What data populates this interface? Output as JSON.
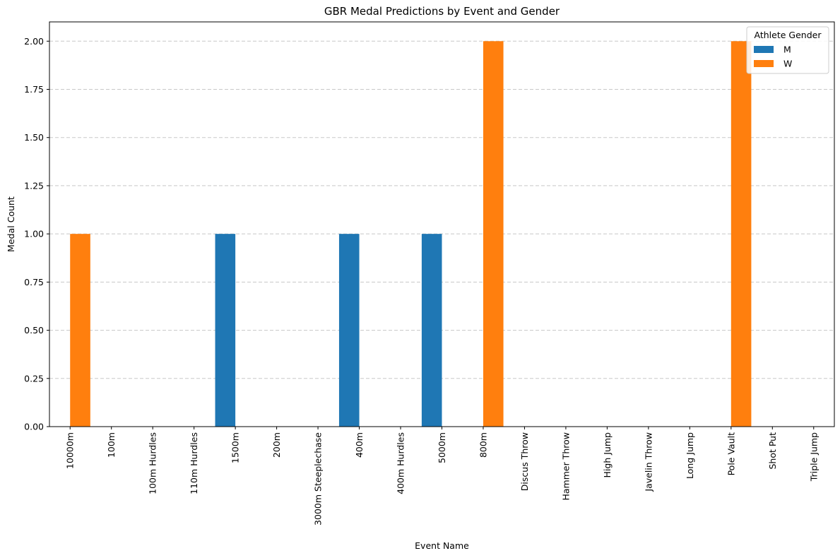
{
  "chart_data": {
    "type": "bar",
    "title": "GBR Medal Predictions by Event and Gender",
    "xlabel": "Event Name",
    "ylabel": "Medal Count",
    "ylim": [
      0,
      2.1
    ],
    "yticks": [
      "0.00",
      "0.25",
      "0.50",
      "0.75",
      "1.00",
      "1.25",
      "1.50",
      "1.75",
      "2.00"
    ],
    "grid": "y-dashed",
    "legend": {
      "title": "Athlete Gender",
      "placement": "top-right"
    },
    "categories": [
      "10000m",
      "100m",
      "100m Hurdles",
      "110m Hurdles",
      "1500m",
      "200m",
      "3000m Steeplechase",
      "400m",
      "400m Hurdles",
      "5000m",
      "800m",
      "Discus Throw",
      "Hammer Throw",
      "High Jump",
      "Javelin Throw",
      "Long Jump",
      "Pole Vault",
      "Shot Put",
      "Triple Jump"
    ],
    "series": [
      {
        "name": "M",
        "color": "#1f77b4",
        "values": [
          0,
          0,
          0,
          0,
          1,
          0,
          0,
          1,
          0,
          1,
          0,
          0,
          0,
          0,
          0,
          0,
          0,
          0,
          0
        ]
      },
      {
        "name": "W",
        "color": "#ff7f0e",
        "values": [
          1,
          0,
          0,
          0,
          0,
          0,
          0,
          0,
          0,
          0,
          2,
          0,
          0,
          0,
          0,
          0,
          2,
          0,
          0
        ]
      }
    ]
  }
}
